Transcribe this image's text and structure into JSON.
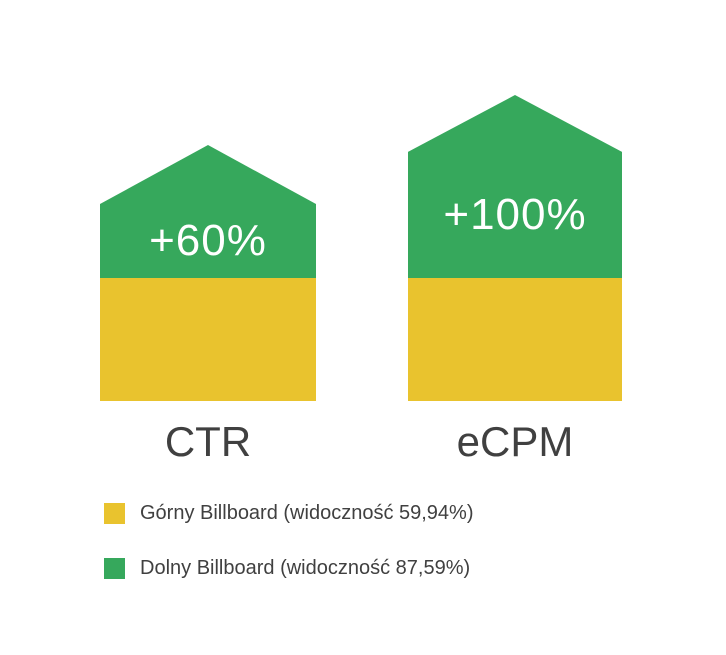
{
  "chart_data": {
    "type": "bar",
    "title": "",
    "categories": [
      "CTR",
      "eCPM"
    ],
    "bars": [
      {
        "category": "CTR",
        "delta_label": "+60%",
        "increase_percent": 60,
        "baseline": 100
      },
      {
        "category": "eCPM",
        "delta_label": "+100%",
        "increase_percent": 100,
        "baseline": 100
      }
    ],
    "series": [
      {
        "name": "Górny Billboard (widoczność 59,94%)",
        "color": "#E9C32E",
        "values": [
          100,
          100
        ]
      },
      {
        "name": "Dolny Billboard (widoczność 87,59%)",
        "color": "#36A85C",
        "values": [
          60,
          100
        ]
      }
    ],
    "legend_position": "bottom",
    "grid": false,
    "axes_visible": false
  },
  "legend": {
    "items": [
      {
        "label": "Górny Billboard (widoczność 59,94%)",
        "color": "#E9C32E"
      },
      {
        "label": "Dolny Billboard (widoczność 87,59%)",
        "color": "#36A85C"
      }
    ]
  },
  "colors": {
    "yellow": "#E9C32E",
    "green": "#36A85C",
    "label_gray": "#404040",
    "background": "#FFFFFF",
    "delta_text": "#FFFFFF"
  }
}
